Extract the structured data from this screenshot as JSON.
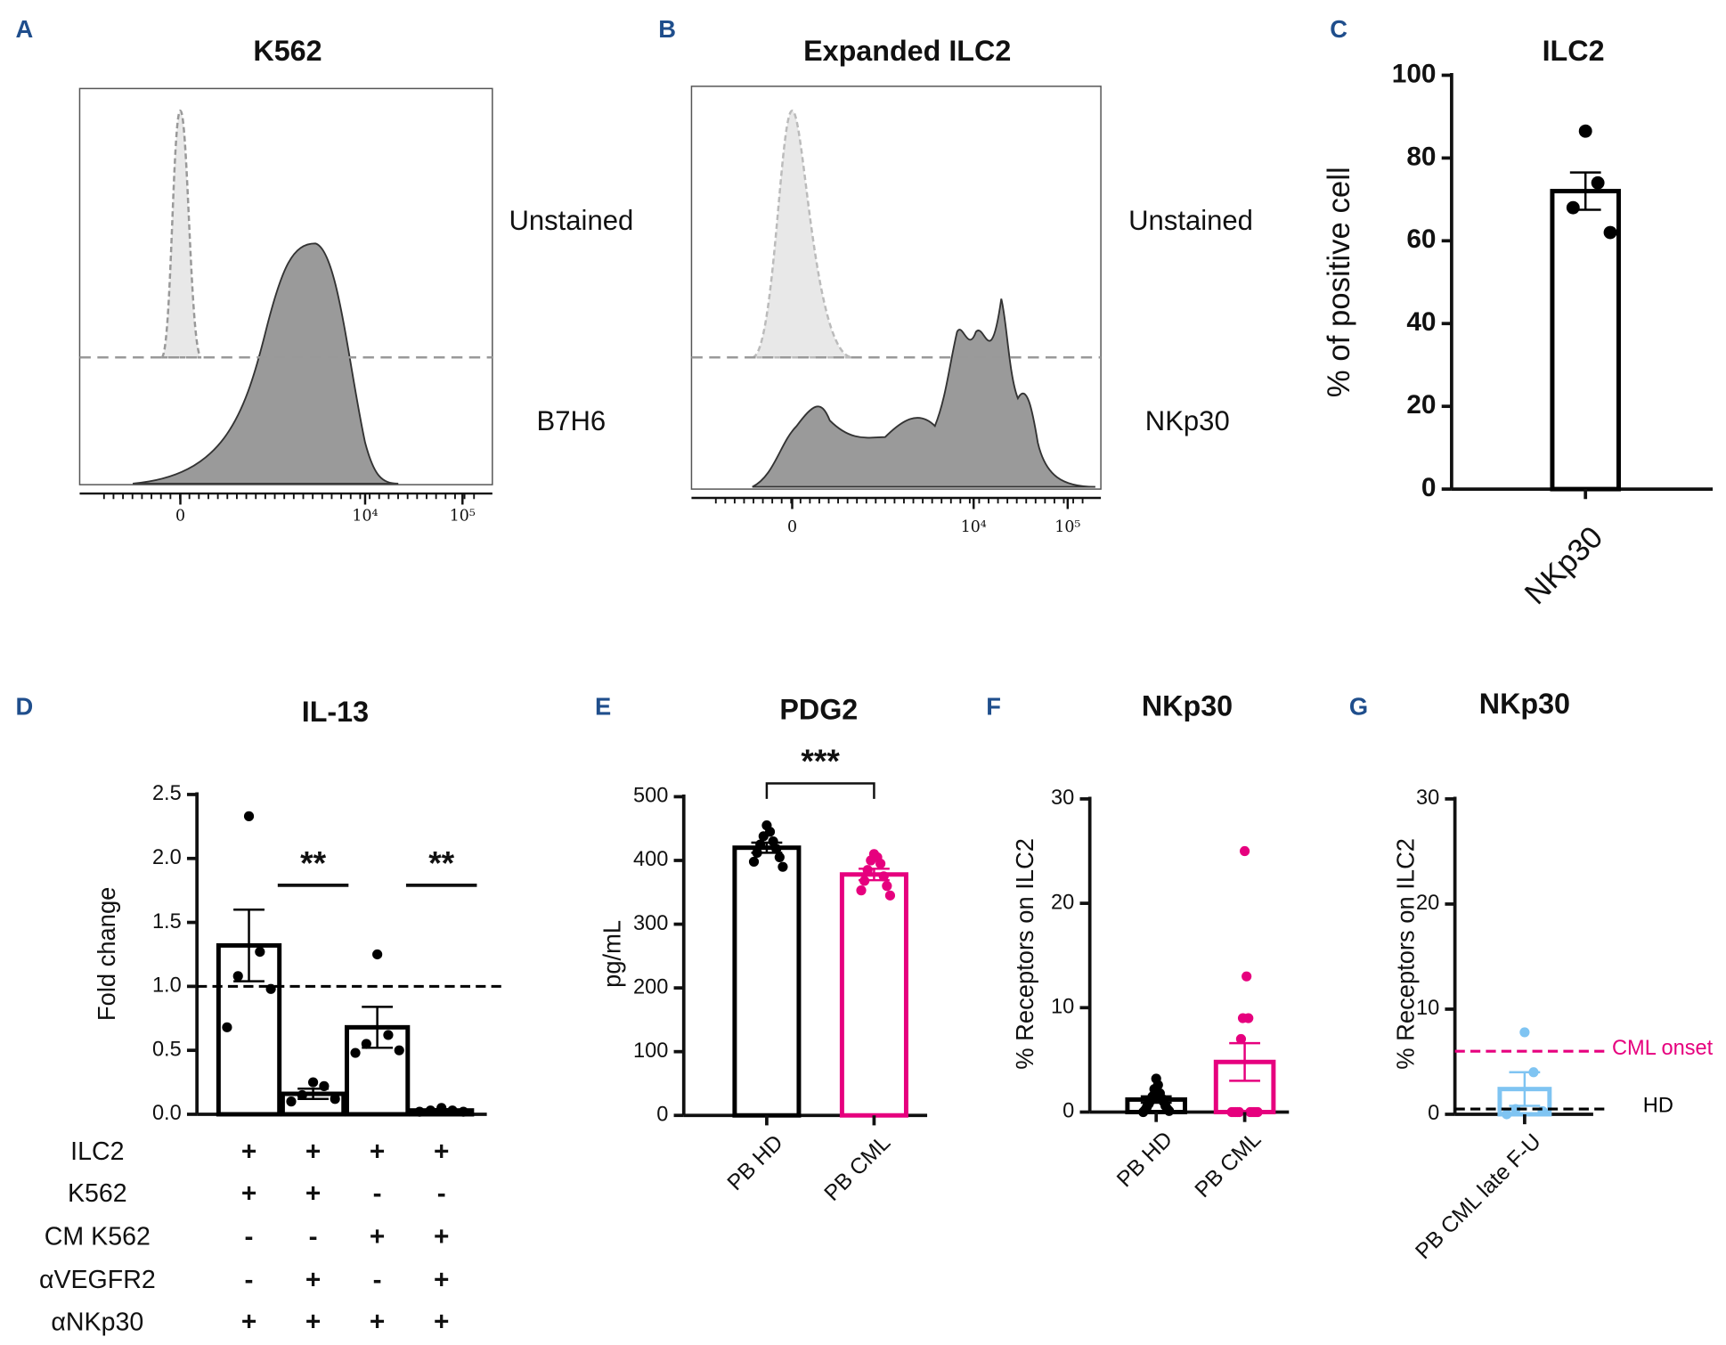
{
  "chart_data": [
    {
      "panel": "A",
      "type": "flow",
      "title": "K562",
      "series": [
        {
          "name": "Unstained"
        },
        {
          "name": "B7H6"
        }
      ],
      "xticks": [
        {
          "value": 0,
          "label": "0"
        },
        {
          "value": 10000,
          "label": "10⁴"
        },
        {
          "value": 100000,
          "label": "10⁵"
        }
      ]
    },
    {
      "panel": "B",
      "type": "flow",
      "title": "Expanded ILC2",
      "series": [
        {
          "name": "Unstained"
        },
        {
          "name": "NKp30"
        }
      ],
      "xticks": [
        {
          "value": 0,
          "label": "0"
        },
        {
          "value": 10000,
          "label": "10⁴"
        },
        {
          "value": 100000,
          "label": "10⁵"
        }
      ]
    },
    {
      "panel": "C",
      "type": "bar",
      "title": "ILC2",
      "ylabel": "% of positive cell",
      "categories": [
        "NKp30"
      ],
      "values": [
        72
      ],
      "errors": [
        4.5
      ],
      "points": [
        [
          86.5,
          74,
          68,
          62
        ]
      ],
      "colors": [
        "#000000"
      ],
      "ylim": [
        0,
        100
      ],
      "yticks": [
        0,
        20,
        40,
        60,
        80,
        100
      ]
    },
    {
      "panel": "D",
      "type": "bar",
      "title": "IL-13",
      "ylabel": "Fold change",
      "values": [
        1.32,
        0.16,
        0.68,
        0.03
      ],
      "errors": [
        0.28,
        0.04,
        0.16,
        0.01
      ],
      "points": [
        [
          2.33,
          1.27,
          1.08,
          0.98,
          0.68
        ],
        [
          0.25,
          0.22,
          0.15,
          0.12,
          0.1
        ],
        [
          1.25,
          0.62,
          0.55,
          0.5,
          0.48
        ],
        [
          0.05,
          0.03,
          0.03,
          0.02,
          0.02
        ]
      ],
      "colors": [
        "#000000",
        "#000000",
        "#000000",
        "#000000"
      ],
      "ylim": [
        0,
        2.5
      ],
      "yticks": [
        {
          "value": 0,
          "label": "0.0"
        },
        {
          "value": 0.5,
          "label": "0.5"
        },
        {
          "value": 1,
          "label": "1.0"
        },
        {
          "value": 1.5,
          "label": "1.5"
        },
        {
          "value": 2,
          "label": "2.0"
        },
        {
          "value": 2.5,
          "label": "2.5"
        }
      ],
      "reference_lines": [
        {
          "value": 1,
          "color": "#000000"
        }
      ],
      "significance": [
        {
          "label": "**"
        },
        {
          "label": "**"
        }
      ],
      "conditions": {
        "rows": [
          "ILC2",
          "K562",
          "CM K562",
          "αVEGFR2",
          "αNKp30"
        ],
        "signs": [
          [
            "+",
            "+",
            "+",
            "+"
          ],
          [
            "+",
            "+",
            "-",
            "-"
          ],
          [
            "-",
            "-",
            "+",
            "+"
          ],
          [
            "-",
            "+",
            "-",
            "+"
          ],
          [
            "+",
            "+",
            "+",
            "+"
          ]
        ]
      }
    },
    {
      "panel": "E",
      "type": "bar",
      "title": "PDG2",
      "ylabel": "pg/mL",
      "categories": [
        "PB HD",
        "PB CML"
      ],
      "values": [
        420,
        378
      ],
      "errors": [
        8,
        9
      ],
      "points": [
        [
          455,
          445,
          438,
          430,
          425,
          418,
          412,
          405,
          398,
          390
        ],
        [
          410,
          405,
          400,
          395,
          385,
          375,
          368,
          360,
          353,
          345
        ]
      ],
      "colors": [
        "#000000",
        "#e6007e"
      ],
      "ylim": [
        0,
        500
      ],
      "yticks": [
        0,
        100,
        200,
        300,
        400,
        500
      ],
      "significance": [
        {
          "label": "***"
        }
      ]
    },
    {
      "panel": "F",
      "type": "bar",
      "title": "NKp30",
      "ylabel": "% Receptors on ILC2",
      "categories": [
        "PB HD",
        "PB CML"
      ],
      "values": [
        1.2,
        4.8
      ],
      "errors": [
        0.3,
        1.8
      ],
      "points": [
        [
          3.2,
          2.6,
          2.2,
          1.8,
          1.5,
          1.3,
          1.1,
          1,
          0.8,
          0.6,
          0.5,
          0.3,
          0.2,
          0.1,
          0
        ],
        [
          25,
          13,
          9,
          9,
          7,
          0,
          0,
          0,
          0,
          0,
          0,
          0,
          0,
          0,
          0
        ]
      ],
      "colors": [
        "#000000",
        "#e6007e"
      ],
      "ylim": [
        0,
        30
      ],
      "yticks": [
        0,
        10,
        20,
        30
      ]
    },
    {
      "panel": "G",
      "type": "bar",
      "title": "NKp30",
      "ylabel": "% Receptors on ILC2",
      "categories": [
        "PB CML late F-U"
      ],
      "values": [
        2.4
      ],
      "errors": [
        1.6
      ],
      "points": [
        [
          7.8,
          4,
          0.5,
          0.3,
          0
        ]
      ],
      "colors": [
        "#7fc4f2"
      ],
      "ylim": [
        0,
        30
      ],
      "yticks": [
        0,
        10,
        20,
        30
      ],
      "reference_lines": [
        {
          "label": "CML onset",
          "value": 6,
          "color": "#e6007e"
        },
        {
          "label": "HD",
          "value": 0.5,
          "color": "#000000"
        }
      ]
    }
  ]
}
